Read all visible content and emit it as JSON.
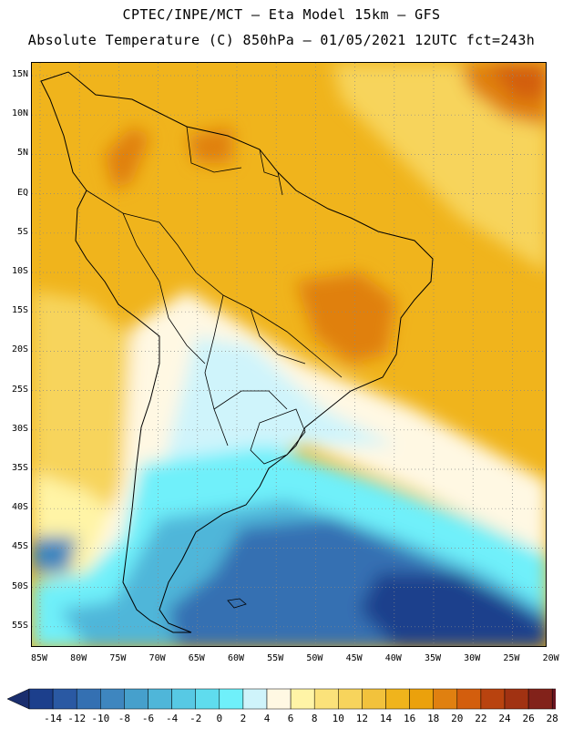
{
  "title_line1": "CPTEC/INPE/MCT –  Eta Model 15km – GFS",
  "title_line2": "Absolute Temperature (C) 850hPa – 01/05/2021 12UTC fct=243h",
  "lat_labels": [
    "15N",
    "10N",
    "5N",
    "EQ",
    "5S",
    "10S",
    "15S",
    "20S",
    "25S",
    "30S",
    "35S",
    "40S",
    "45S",
    "50S",
    "55S"
  ],
  "lon_labels": [
    "85W",
    "80W",
    "75W",
    "70W",
    "65W",
    "60W",
    "55W",
    "50W",
    "45W",
    "40W",
    "35W",
    "30W",
    "25W",
    "20W"
  ],
  "colorbar": {
    "labels": [
      "-14",
      "-12",
      "-10",
      "-8",
      "-6",
      "-4",
      "-2",
      "0",
      "2",
      "4",
      "6",
      "8",
      "10",
      "12",
      "14",
      "16",
      "18",
      "20",
      "22",
      "24",
      "26",
      "28"
    ],
    "colors": [
      "#1c3f8c",
      "#2a59a3",
      "#3470b2",
      "#3e86bf",
      "#46a0cc",
      "#4fb6d9",
      "#57c9e4",
      "#5fdcee",
      "#6ff0fa",
      "#cff4fb",
      "#fff8e3",
      "#fff4a6",
      "#fbe27a",
      "#f7d45c",
      "#f2c23c",
      "#f0b41c",
      "#eba10c",
      "#e08010",
      "#d35e0d",
      "#b9430f",
      "#a13212",
      "#82221a",
      "#6a1420",
      "#5a0e20"
    ],
    "under_color": "#1a2e6e",
    "over_color": "#5e0a26"
  },
  "colors": {
    "frame": "#000000",
    "grid": "#888888",
    "coast": "#000000"
  }
}
